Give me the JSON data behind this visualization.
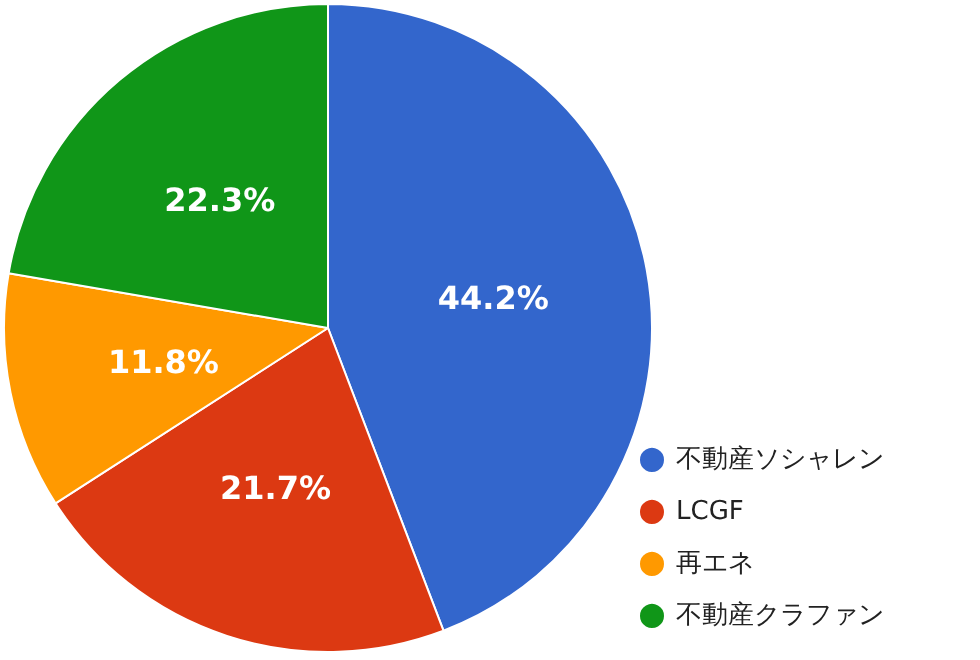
{
  "chart_data": {
    "type": "pie",
    "categories": [
      "不動産ソシャレン",
      "LCGF",
      "再エネ",
      "不動産クラファン"
    ],
    "values": [
      44.2,
      21.7,
      11.8,
      22.3
    ],
    "colors": [
      "#3366cc",
      "#dc3912",
      "#ff9900",
      "#109618"
    ],
    "value_labels": [
      "44.2%",
      "21.7%",
      "11.8%",
      "22.3%"
    ],
    "legend": "bottom right"
  }
}
